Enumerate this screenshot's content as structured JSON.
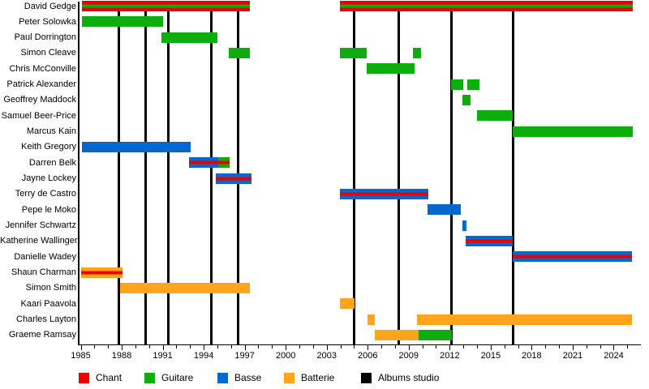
{
  "chart_data": {
    "type": "bar",
    "subtype": "band-membership-timeline",
    "title": "",
    "x_axis": {
      "start_year": 1985,
      "end_year": 2026,
      "labeled_ticks": [
        1985,
        1988,
        1991,
        1994,
        1997,
        2000,
        2003,
        2006,
        2009,
        2012,
        2015,
        2018,
        2021,
        2024
      ],
      "minor_tick_every_years": 1,
      "minor_tick_last_year": 2025
    },
    "legend": [
      {
        "id": "chant",
        "label": "Chant",
        "color": "#EF0000"
      },
      {
        "id": "guitare",
        "label": "Guitare",
        "color": "#0DAD0D"
      },
      {
        "id": "basse",
        "label": "Basse",
        "color": "#0667CC"
      },
      {
        "id": "batterie",
        "label": "Batterie",
        "color": "#FFA41C"
      },
      {
        "id": "albums",
        "label": "Albums studio",
        "color": "#000000"
      }
    ],
    "album_release_years": [
      1987.8,
      1989.75,
      1991.4,
      1994.55,
      1996.5,
      2005.0,
      2008.25,
      2012.1,
      2016.65
    ],
    "members": [
      {
        "name": "David Gedge",
        "segments": [
          {
            "start": 1985.1,
            "end": 1997.4,
            "roles": [
              "chant",
              "guitare"
            ]
          },
          {
            "start": 2003.95,
            "end": 2025.4,
            "roles": [
              "chant",
              "guitare"
            ]
          }
        ]
      },
      {
        "name": "Peter Solowka",
        "segments": [
          {
            "start": 1985.1,
            "end": 1991.0,
            "roles": [
              "guitare"
            ]
          }
        ]
      },
      {
        "name": "Paul Dorrington",
        "segments": [
          {
            "start": 1990.9,
            "end": 1995.0,
            "roles": [
              "guitare"
            ]
          }
        ]
      },
      {
        "name": "Simon Cleave",
        "segments": [
          {
            "start": 1995.85,
            "end": 1997.4,
            "roles": [
              "guitare"
            ]
          },
          {
            "start": 2003.95,
            "end": 2005.9,
            "roles": [
              "guitare"
            ]
          },
          {
            "start": 2009.3,
            "end": 2009.9,
            "roles": [
              "guitare"
            ]
          }
        ]
      },
      {
        "name": "Chris McConville",
        "segments": [
          {
            "start": 2005.9,
            "end": 2009.4,
            "roles": [
              "guitare"
            ]
          }
        ]
      },
      {
        "name": "Patrick Alexander",
        "segments": [
          {
            "start": 2012.1,
            "end": 2013.0,
            "roles": [
              "guitare"
            ]
          },
          {
            "start": 2013.3,
            "end": 2014.15,
            "roles": [
              "guitare"
            ]
          }
        ]
      },
      {
        "name": "Geoffrey Maddock",
        "segments": [
          {
            "start": 2012.95,
            "end": 2013.5,
            "roles": [
              "guitare"
            ]
          }
        ]
      },
      {
        "name": "Samuel Beer-Price",
        "segments": [
          {
            "start": 2014.0,
            "end": 2016.6,
            "roles": [
              "guitare"
            ]
          }
        ]
      },
      {
        "name": "Marcus Kain",
        "segments": [
          {
            "start": 2016.6,
            "end": 2025.4,
            "roles": [
              "guitare"
            ]
          }
        ]
      },
      {
        "name": "Keith Gregory",
        "segments": [
          {
            "start": 1985.1,
            "end": 1993.05,
            "roles": [
              "basse"
            ]
          }
        ]
      },
      {
        "name": "Darren Belk",
        "segments": [
          {
            "start": 1992.95,
            "end": 1995.05,
            "roles": [
              "basse",
              "chant"
            ]
          },
          {
            "start": 1995.05,
            "end": 1995.9,
            "roles": [
              "guitare",
              "chant"
            ]
          }
        ]
      },
      {
        "name": "Jayne Lockey",
        "segments": [
          {
            "start": 1994.9,
            "end": 1997.5,
            "roles": [
              "basse",
              "chant"
            ]
          }
        ]
      },
      {
        "name": "Terry de Castro",
        "segments": [
          {
            "start": 2003.95,
            "end": 2010.45,
            "roles": [
              "basse",
              "chant"
            ]
          }
        ]
      },
      {
        "name": "Pepe le Moko",
        "segments": [
          {
            "start": 2010.4,
            "end": 2012.8,
            "roles": [
              "basse"
            ]
          }
        ]
      },
      {
        "name": "Jennifer Schwartz",
        "segments": [
          {
            "start": 2012.95,
            "end": 2013.2,
            "roles": [
              "basse"
            ]
          }
        ]
      },
      {
        "name": "Katherine Wallinger",
        "segments": [
          {
            "start": 2013.15,
            "end": 2016.6,
            "roles": [
              "basse",
              "chant"
            ]
          }
        ]
      },
      {
        "name": "Danielle Wadey",
        "segments": [
          {
            "start": 2016.6,
            "end": 2025.35,
            "roles": [
              "basse",
              "chant"
            ]
          }
        ]
      },
      {
        "name": "Shaun Charman",
        "segments": [
          {
            "start": 1985.0,
            "end": 1988.05,
            "roles": [
              "batterie",
              "chant"
            ]
          }
        ]
      },
      {
        "name": "Simon Smith",
        "segments": [
          {
            "start": 1987.9,
            "end": 1997.35,
            "roles": [
              "batterie"
            ]
          }
        ]
      },
      {
        "name": "Kaari Paavola",
        "segments": [
          {
            "start": 2003.95,
            "end": 2005.05,
            "roles": [
              "batterie"
            ]
          }
        ]
      },
      {
        "name": "Charles Layton",
        "segments": [
          {
            "start": 2006.0,
            "end": 2006.5,
            "roles": [
              "batterie"
            ]
          },
          {
            "start": 2009.6,
            "end": 2025.35,
            "roles": [
              "batterie"
            ]
          }
        ]
      },
      {
        "name": "Graeme Ramsay",
        "segments": [
          {
            "start": 2006.5,
            "end": 2009.75,
            "roles": [
              "batterie"
            ]
          },
          {
            "start": 2009.75,
            "end": 2012.15,
            "roles": [
              "guitare"
            ]
          }
        ]
      }
    ]
  }
}
